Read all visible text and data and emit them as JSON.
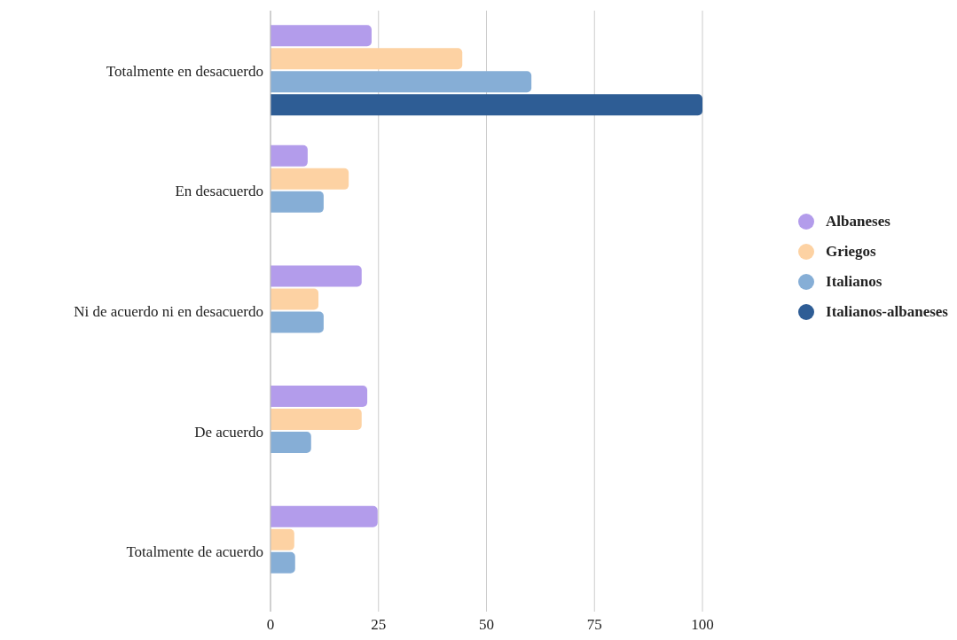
{
  "chart_data": {
    "type": "bar",
    "orientation": "horizontal",
    "categories": [
      "Totalmente en desacuerdo",
      "En desacuerdo",
      "Ni de acuerdo ni en desacuerdo",
      "De acuerdo",
      "Totalmente de acuerdo"
    ],
    "series": [
      {
        "name": "Albaneses",
        "color": "#b39ceb",
        "values": [
          23.4,
          8.6,
          21.1,
          22.4,
          24.8
        ]
      },
      {
        "name": "Griegos",
        "color": "#fdd2a3",
        "values": [
          44.4,
          18.1,
          11.1,
          21.1,
          5.5
        ]
      },
      {
        "name": "Italianos",
        "color": "#86aed6",
        "values": [
          60.4,
          12.3,
          12.3,
          9.4,
          5.7
        ]
      },
      {
        "name": "Italianos-albaneses",
        "color": "#2e5d95",
        "values": [
          100,
          null,
          null,
          null,
          null
        ]
      }
    ],
    "xlim": [
      0,
      100
    ],
    "xticks": [
      0,
      25,
      50,
      75,
      100
    ],
    "grid": "x",
    "legend": "right"
  }
}
